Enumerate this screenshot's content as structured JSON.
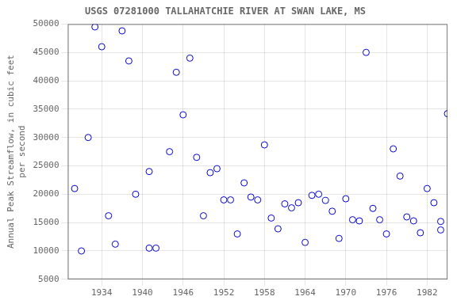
{
  "chart_data": {
    "type": "scatter",
    "title": "USGS 07281000 TALLAHATCHIE RIVER AT SWAN LAKE, MS",
    "ylabel": "Annual Peak Streamflow, in cubic feet\nper second",
    "x": [
      1930,
      1931,
      1932,
      1933,
      1934,
      1935,
      1936,
      1937,
      1938,
      1939,
      1941,
      1941,
      1942,
      1944,
      1945,
      1946,
      1947,
      1948,
      1949,
      1950,
      1951,
      1952,
      1953,
      1954,
      1955,
      1956,
      1957,
      1958,
      1959,
      1960,
      1961,
      1962,
      1963,
      1964,
      1965,
      1966,
      1967,
      1968,
      1969,
      1970,
      1971,
      1972,
      1973,
      1974,
      1975,
      1976,
      1977,
      1978,
      1979,
      1980,
      1981,
      1982,
      1983,
      1984,
      1984,
      1985
    ],
    "values": [
      21000,
      10000,
      30000,
      49500,
      46000,
      16200,
      11200,
      48800,
      43500,
      20000,
      24000,
      10500,
      10500,
      27500,
      41500,
      34000,
      44000,
      26500,
      16200,
      23800,
      24500,
      19000,
      19000,
      13000,
      22000,
      19500,
      19000,
      28700,
      15800,
      13900,
      18300,
      17600,
      18500,
      11500,
      19800,
      20000,
      18900,
      17000,
      12200,
      19200,
      15500,
      15300,
      45000,
      17500,
      15500,
      13000,
      28000,
      23200,
      16000,
      15300,
      13200,
      21000,
      18500,
      13700,
      15200,
      34200
    ],
    "xlim": [
      1929,
      1985
    ],
    "ylim": [
      5000,
      50000
    ],
    "xticks": [
      1934,
      1940,
      1946,
      1952,
      1958,
      1964,
      1970,
      1976,
      1982
    ],
    "yticks": [
      5000,
      10000,
      15000,
      20000,
      25000,
      30000,
      35000,
      40000,
      45000,
      50000
    ],
    "color": "#0000cc",
    "marker": "open circle",
    "grid": true
  }
}
